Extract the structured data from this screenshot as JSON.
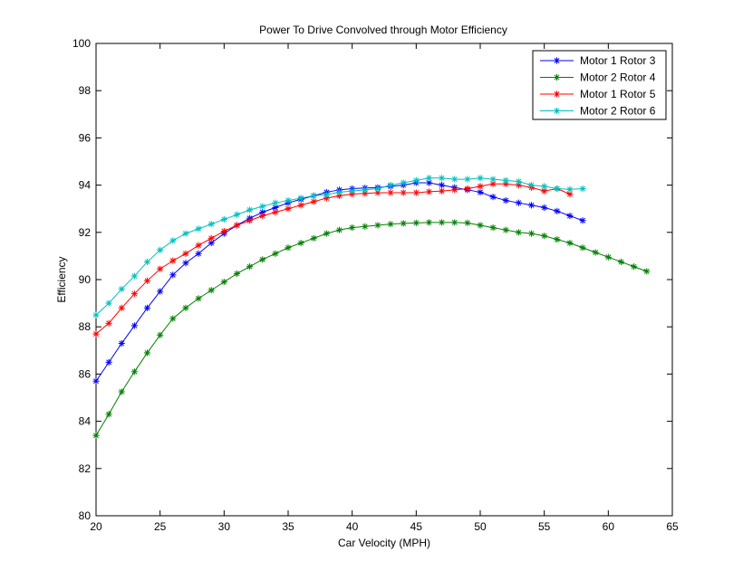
{
  "chart_data": {
    "type": "line",
    "title": "Power To Drive Convolved through Motor Efficiency",
    "xlabel": "Car Velocity (MPH)",
    "ylabel": "Efficiency",
    "xlim": [
      20,
      65
    ],
    "ylim": [
      80,
      100
    ],
    "xticks": [
      20,
      25,
      30,
      35,
      40,
      45,
      50,
      55,
      60,
      65
    ],
    "yticks": [
      80,
      82,
      84,
      86,
      88,
      90,
      92,
      94,
      96,
      98,
      100
    ],
    "grid": false,
    "legend_position": "top-right",
    "marker": "asterisk",
    "series": [
      {
        "name": "Motor 1 Rotor 3",
        "color": "#0000ff",
        "x": [
          20,
          21,
          22,
          23,
          24,
          25,
          26,
          27,
          28,
          29,
          30,
          31,
          32,
          33,
          34,
          35,
          36,
          37,
          38,
          39,
          40,
          41,
          42,
          43,
          44,
          45,
          46,
          47,
          48,
          49,
          50,
          51,
          52,
          53,
          54,
          55,
          56,
          57,
          58
        ],
        "values": [
          85.7,
          86.5,
          87.3,
          88.05,
          88.8,
          89.5,
          90.2,
          90.7,
          91.1,
          91.55,
          91.95,
          92.3,
          92.6,
          92.85,
          93.05,
          93.25,
          93.4,
          93.55,
          93.7,
          93.8,
          93.85,
          93.88,
          93.9,
          93.95,
          94.0,
          94.1,
          94.1,
          94.0,
          93.9,
          93.8,
          93.7,
          93.5,
          93.35,
          93.25,
          93.15,
          93.05,
          92.9,
          92.7,
          92.5
        ]
      },
      {
        "name": "Motor 2 Rotor 4",
        "color": "#008000",
        "x": [
          20,
          21,
          22,
          23,
          24,
          25,
          26,
          27,
          28,
          29,
          30,
          31,
          32,
          33,
          34,
          35,
          36,
          37,
          38,
          39,
          40,
          41,
          42,
          43,
          44,
          45,
          46,
          47,
          48,
          49,
          50,
          51,
          52,
          53,
          54,
          55,
          56,
          57,
          58,
          59,
          60,
          61,
          62,
          63
        ],
        "values": [
          83.4,
          84.3,
          85.25,
          86.1,
          86.9,
          87.65,
          88.35,
          88.8,
          89.2,
          89.55,
          89.9,
          90.25,
          90.55,
          90.85,
          91.1,
          91.35,
          91.55,
          91.75,
          91.95,
          92.1,
          92.2,
          92.25,
          92.3,
          92.35,
          92.38,
          92.4,
          92.42,
          92.42,
          92.42,
          92.4,
          92.3,
          92.2,
          92.1,
          92.0,
          91.95,
          91.85,
          91.7,
          91.55,
          91.35,
          91.15,
          90.95,
          90.75,
          90.55,
          90.35
        ]
      },
      {
        "name": "Motor 1 Rotor 5",
        "color": "#ff0000",
        "x": [
          20,
          21,
          22,
          23,
          24,
          25,
          26,
          27,
          28,
          29,
          30,
          31,
          32,
          33,
          34,
          35,
          36,
          37,
          38,
          39,
          40,
          41,
          42,
          43,
          44,
          45,
          46,
          47,
          48,
          49,
          50,
          51,
          52,
          53,
          54,
          55,
          56,
          57
        ],
        "values": [
          87.7,
          88.15,
          88.8,
          89.4,
          89.95,
          90.45,
          90.8,
          91.1,
          91.45,
          91.75,
          92.05,
          92.3,
          92.5,
          92.7,
          92.85,
          93.0,
          93.15,
          93.3,
          93.45,
          93.55,
          93.62,
          93.65,
          93.68,
          93.68,
          93.68,
          93.68,
          93.72,
          93.75,
          93.8,
          93.85,
          93.95,
          94.05,
          94.05,
          94.0,
          93.9,
          93.75,
          93.85,
          93.62
        ]
      },
      {
        "name": "Motor 2 Rotor 6",
        "color": "#00bfbf",
        "x": [
          20,
          21,
          22,
          23,
          24,
          25,
          26,
          27,
          28,
          29,
          30,
          31,
          32,
          33,
          34,
          35,
          36,
          37,
          38,
          39,
          40,
          41,
          42,
          43,
          44,
          45,
          46,
          47,
          48,
          49,
          50,
          51,
          52,
          53,
          54,
          55,
          56,
          57,
          58
        ],
        "values": [
          88.5,
          89.0,
          89.6,
          90.15,
          90.75,
          91.25,
          91.65,
          91.95,
          92.15,
          92.35,
          92.55,
          92.75,
          92.95,
          93.1,
          93.25,
          93.35,
          93.45,
          93.55,
          93.6,
          93.7,
          93.75,
          93.8,
          93.85,
          94.0,
          94.1,
          94.2,
          94.3,
          94.3,
          94.25,
          94.25,
          94.3,
          94.25,
          94.2,
          94.15,
          94.0,
          93.95,
          93.85,
          93.82,
          93.85
        ]
      }
    ]
  }
}
